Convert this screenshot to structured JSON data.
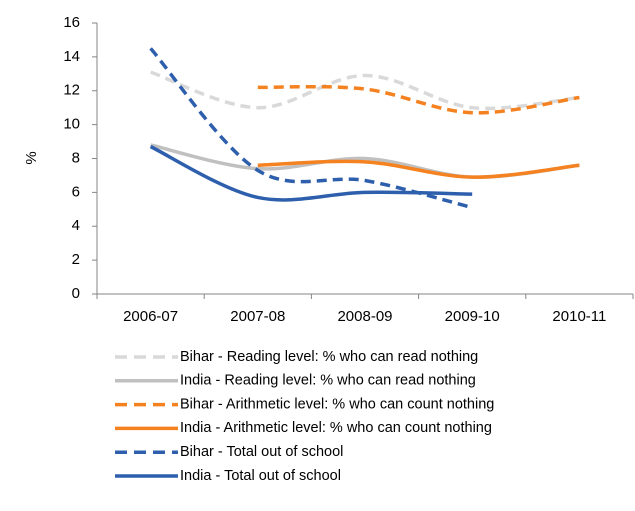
{
  "chart_data": {
    "type": "line",
    "y_label": "%",
    "categories": [
      "2006-07",
      "2007-08",
      "2008-09",
      "2009-10",
      "2010-11"
    ],
    "series": [
      {
        "name": "Bihar - Reading level: % who can read nothing",
        "color": "#d9d9d9",
        "line_style": "dashed",
        "values": [
          13.1,
          11.0,
          12.9,
          11.0,
          11.6
        ]
      },
      {
        "name": "India - Reading level: % who can read nothing",
        "color": "#c0c0c0",
        "line_style": "solid",
        "values": [
          8.8,
          7.4,
          8.0,
          6.9,
          7.6
        ]
      },
      {
        "name": "Bihar - Arithmetic level: % who can count nothing",
        "color": "#f58220",
        "line_style": "dashed",
        "values": [
          null,
          12.2,
          12.1,
          10.7,
          11.6
        ]
      },
      {
        "name": "India - Arithmetic level: % who can count nothing",
        "color": "#f58220",
        "line_style": "solid",
        "values": [
          null,
          7.6,
          7.8,
          6.9,
          7.6
        ]
      },
      {
        "name": "Bihar - Total out of school",
        "color": "#2e5fad",
        "line_style": "dashed",
        "values": [
          14.5,
          7.3,
          6.7,
          5.1,
          null
        ]
      },
      {
        "name": "India - Total out of school",
        "color": "#2e5fad",
        "line_style": "solid",
        "values": [
          8.7,
          5.7,
          6.0,
          5.9,
          null
        ]
      }
    ],
    "ylim": [
      0,
      16
    ],
    "yticks": [
      0,
      2,
      4,
      6,
      8,
      10,
      12,
      14,
      16
    ],
    "grid": false,
    "smooth": true,
    "legend": "bottom"
  }
}
